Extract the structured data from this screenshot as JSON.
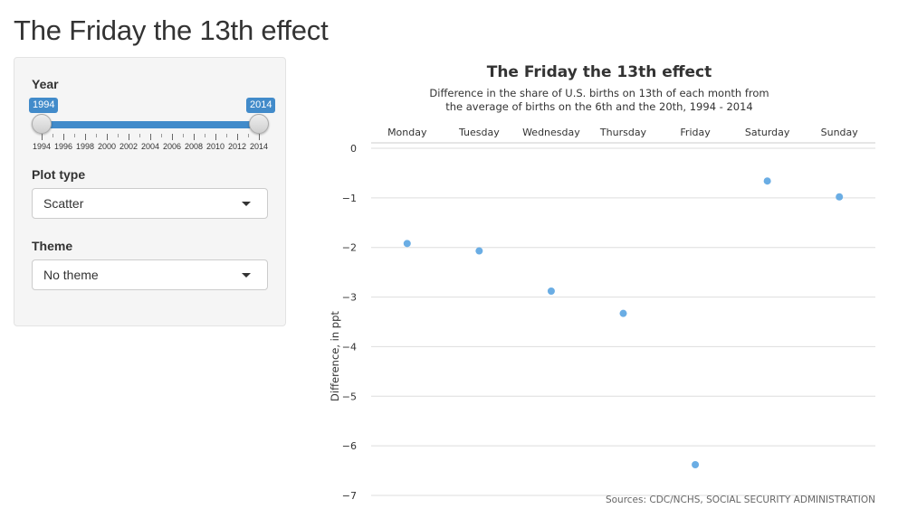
{
  "app": {
    "title": "The Friday the 13th effect"
  },
  "sidebar": {
    "year": {
      "label": "Year",
      "from": 1994,
      "to": 2014,
      "min": 1994,
      "max": 2014,
      "from_label": "1994",
      "to_label": "2014",
      "tick_labels": [
        "1994",
        "1996",
        "1998",
        "2000",
        "2002",
        "2004",
        "2006",
        "2008",
        "2010",
        "2012",
        "2014"
      ],
      "bar_color": "#428bca"
    },
    "plot_type": {
      "label": "Plot type",
      "selected": "Scatter"
    },
    "theme": {
      "label": "Theme",
      "selected": "No theme"
    }
  },
  "chart_data": {
    "type": "scatter",
    "title": "The Friday the 13th effect",
    "subtitle_line1": "Difference in the share of U.S. births on 13th of each month from",
    "subtitle_line2": "the average of births on the 6th and the 20th, 1994 - 2014",
    "ylabel": "Difference, in ppt",
    "categories": [
      "Monday",
      "Tuesday",
      "Wednesday",
      "Thursday",
      "Friday",
      "Saturday",
      "Sunday"
    ],
    "values": [
      -1.92,
      -2.07,
      -2.88,
      -3.33,
      -6.38,
      -0.66,
      -0.98
    ],
    "ylim": [
      -7,
      0
    ],
    "yticks": [
      0,
      -1,
      -2,
      -3,
      -4,
      -5,
      -6,
      -7
    ],
    "ytick_labels": [
      "0",
      "−1",
      "−2",
      "−3",
      "−4",
      "−5",
      "−6",
      "−7"
    ],
    "x_axis_position": "top",
    "grid": true,
    "point_color": "#6aade4",
    "source": "Sources: CDC/NCHS, SOCIAL SECURITY ADMINISTRATION"
  }
}
